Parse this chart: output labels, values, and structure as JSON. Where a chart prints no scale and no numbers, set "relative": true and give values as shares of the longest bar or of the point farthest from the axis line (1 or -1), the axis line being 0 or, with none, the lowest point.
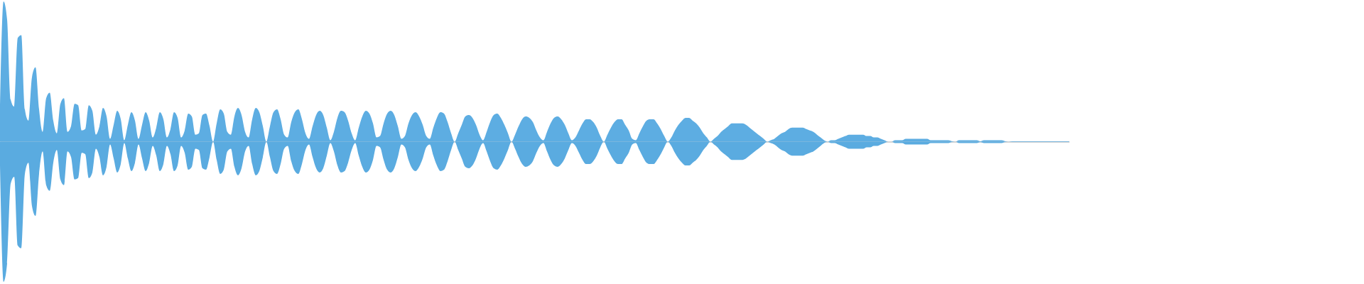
{
  "chart_data": {
    "type": "area",
    "relative": true,
    "categories": [
      null,
      null,
      null,
      null,
      null,
      null,
      null,
      null,
      null,
      null,
      null,
      null,
      null,
      null,
      null,
      null,
      null,
      null,
      null,
      null,
      null,
      null,
      null,
      null,
      null,
      null,
      null,
      null,
      null,
      null,
      null,
      null,
      null,
      null,
      null,
      null,
      null,
      null,
      null,
      null,
      null,
      null,
      null,
      null,
      null,
      null,
      null,
      null,
      null,
      null,
      null,
      null,
      null,
      null,
      null,
      null,
      null,
      null,
      null,
      null,
      null,
      null,
      null,
      null,
      null,
      null,
      null,
      null,
      null,
      null,
      null,
      null,
      null,
      null,
      null,
      null,
      null,
      null,
      null,
      null,
      null,
      null,
      null,
      null,
      null,
      null,
      null,
      null,
      null,
      null,
      null,
      null,
      null,
      null,
      null,
      null,
      null,
      null,
      null,
      null,
      null,
      null,
      null,
      null,
      null,
      null,
      null,
      null,
      null,
      null,
      null,
      null,
      null,
      null,
      null,
      null,
      null,
      null,
      null,
      null,
      null,
      null,
      null,
      null,
      null,
      null,
      null,
      null,
      null,
      null,
      null,
      null,
      null,
      null,
      null,
      null,
      null,
      null,
      null,
      null,
      null,
      null,
      null,
      null,
      null,
      null,
      null,
      null,
      null,
      null,
      null,
      null,
      null,
      null,
      null,
      null,
      null,
      null,
      null,
      null,
      null,
      null,
      null,
      null,
      null,
      null,
      null,
      null,
      null,
      null,
      null,
      null,
      null,
      null,
      null,
      null,
      null,
      null,
      null,
      null,
      null,
      null,
      null,
      null,
      null,
      null,
      null,
      null,
      null,
      null,
      null,
      null,
      null,
      null,
      null,
      null,
      null,
      null,
      null,
      null,
      null,
      null,
      null,
      null,
      null,
      null,
      null,
      null,
      null,
      null,
      null,
      null,
      null,
      null,
      null,
      null,
      null,
      null,
      null,
      null,
      null,
      null,
      null,
      null,
      null,
      null,
      null,
      null,
      null,
      null,
      null,
      null,
      null,
      null,
      null,
      null,
      null,
      null,
      null,
      null,
      null,
      null,
      null,
      null,
      null,
      null,
      null,
      null,
      null,
      null,
      null,
      null,
      null,
      null,
      null,
      null,
      null,
      null,
      null,
      null,
      null,
      null,
      null,
      null,
      null,
      null,
      null,
      null,
      null,
      null,
      null,
      null,
      null,
      null,
      null,
      null,
      null,
      null,
      null,
      null,
      null,
      null,
      null,
      null,
      null,
      null,
      null,
      null,
      null,
      null,
      null,
      null,
      null,
      null,
      null,
      null,
      null,
      null,
      null,
      null,
      null,
      null
    ],
    "series": [
      {
        "color": "#5dade2",
        "values": [
          0.17,
          1,
          0.87,
          0.3,
          0.25,
          0.74,
          0.76,
          0.23,
          0.15,
          0.46,
          0.53,
          0.23,
          0.07,
          0.31,
          0.35,
          0.15,
          0.06,
          0.27,
          0.31,
          0.07,
          0.11,
          0.27,
          0.26,
          0.08,
          0.09,
          0.26,
          0.22,
          0.05,
          0.11,
          0.24,
          0.18,
          0.02,
          0.12,
          0.22,
          0.16,
          0.01,
          0.12,
          0.21,
          0.15,
          0.02,
          0.12,
          0.21,
          0.15,
          0.03,
          0.1,
          0.21,
          0.16,
          0.03,
          0.09,
          0.21,
          0.17,
          0.03,
          0.08,
          0.2,
          0.18,
          0.05,
          0.06,
          0.19,
          0.2,
          0.11,
          0,
          0.13,
          0.23,
          0.2,
          0.07,
          0.05,
          0.18,
          0.24,
          0.19,
          0.07,
          0.03,
          0.16,
          0.24,
          0.21,
          0.11,
          0,
          0.11,
          0.21,
          0.23,
          0.16,
          0.05,
          0.03,
          0.14,
          0.21,
          0.23,
          0.16,
          0.06,
          0.02,
          0.11,
          0.19,
          0.22,
          0.19,
          0.1,
          0.01,
          0.07,
          0.17,
          0.22,
          0.21,
          0.15,
          0.06,
          0.01,
          0.1,
          0.18,
          0.22,
          0.2,
          0.13,
          0.03,
          0.04,
          0.13,
          0.2,
          0.22,
          0.19,
          0.11,
          0.02,
          0.04,
          0.13,
          0.19,
          0.21,
          0.18,
          0.12,
          0.04,
          0.02,
          0.1,
          0.17,
          0.21,
          0.2,
          0.14,
          0.06,
          0,
          0.06,
          0.12,
          0.18,
          0.19,
          0.17,
          0.12,
          0.05,
          0.01,
          0.07,
          0.14,
          0.19,
          0.2,
          0.17,
          0.12,
          0.06,
          0,
          0.05,
          0.11,
          0.16,
          0.18,
          0.17,
          0.14,
          0.08,
          0.03,
          0.01,
          0.07,
          0.13,
          0.17,
          0.18,
          0.16,
          0.12,
          0.06,
          0.01,
          0.03,
          0.08,
          0.13,
          0.16,
          0.16,
          0.14,
          0.1,
          0.04,
          0,
          0.05,
          0.1,
          0.14,
          0.16,
          0.16,
          0.12,
          0.08,
          0.02,
          0.01,
          0.06,
          0.11,
          0.15,
          0.16,
          0.16,
          0.13,
          0.09,
          0.04,
          0,
          0.03,
          0.08,
          0.12,
          0.15,
          0.17,
          0.17,
          0.15,
          0.13,
          0.1,
          0.06,
          0.03,
          0,
          0.02,
          0.04,
          0.07,
          0.09,
          0.11,
          0.13,
          0.13,
          0.13,
          0.13,
          0.12,
          0.1,
          0.08,
          0.06,
          0.04,
          0.02,
          0,
          0.01,
          0.02,
          0.04,
          0.06,
          0.07,
          0.09,
          0.1,
          0.1,
          0.1,
          0.1,
          0.09,
          0.08,
          0.07,
          0.05,
          0.03,
          0.01,
          0,
          0.01,
          0.01,
          0.02,
          0.03,
          0.04,
          0.05,
          0.05,
          0.05,
          0.05,
          0.05,
          0.04,
          0.04,
          0.03,
          0.03,
          0.02,
          0.01,
          0,
          0,
          0.01,
          0.01,
          0.01,
          0.02,
          0.02,
          0.02,
          0.02,
          0.02,
          0.02,
          0.02,
          0.01,
          0.01,
          0.01,
          0.01,
          0.01,
          0.01,
          0.003,
          0,
          0.01,
          0.01,
          0.01,
          0.01,
          0.01,
          0.01,
          0.003,
          0.01,
          0.01,
          0.01,
          0.01,
          0.01,
          0.01,
          0.003,
          0,
          0.003,
          0.003,
          0.003,
          0.003,
          0.003,
          0.003,
          0.003,
          0.003,
          0.003,
          0.003,
          0.003,
          0.003,
          0.003,
          0.003,
          0.003,
          0.003,
          0.003
        ]
      },
      {
        "color": "#5aabe0",
        "values": [
          -0.17,
          -1,
          -0.87,
          -0.3,
          -0.25,
          -0.74,
          -0.76,
          -0.23,
          -0.15,
          -0.46,
          -0.53,
          -0.23,
          -0.07,
          -0.31,
          -0.35,
          -0.15,
          -0.06,
          -0.27,
          -0.31,
          -0.07,
          -0.11,
          -0.27,
          -0.26,
          -0.08,
          -0.09,
          -0.26,
          -0.22,
          -0.05,
          -0.11,
          -0.24,
          -0.18,
          -0.02,
          -0.12,
          -0.22,
          -0.16,
          -0.01,
          -0.12,
          -0.21,
          -0.15,
          -0.02,
          -0.12,
          -0.21,
          -0.15,
          -0.03,
          -0.1,
          -0.21,
          -0.16,
          -0.03,
          -0.09,
          -0.21,
          -0.17,
          -0.03,
          -0.08,
          -0.2,
          -0.18,
          -0.05,
          -0.06,
          -0.19,
          -0.2,
          -0.11,
          0,
          -0.13,
          -0.23,
          -0.2,
          -0.07,
          -0.05,
          -0.18,
          -0.24,
          -0.19,
          -0.07,
          -0.03,
          -0.16,
          -0.24,
          -0.21,
          -0.11,
          0,
          -0.11,
          -0.21,
          -0.23,
          -0.16,
          -0.05,
          -0.03,
          -0.14,
          -0.21,
          -0.23,
          -0.16,
          -0.06,
          -0.02,
          -0.11,
          -0.19,
          -0.22,
          -0.19,
          -0.1,
          -0.01,
          -0.07,
          -0.17,
          -0.22,
          -0.21,
          -0.15,
          -0.06,
          -0.01,
          -0.1,
          -0.18,
          -0.22,
          -0.2,
          -0.13,
          -0.03,
          -0.04,
          -0.13,
          -0.2,
          -0.22,
          -0.19,
          -0.11,
          -0.02,
          -0.04,
          -0.13,
          -0.19,
          -0.21,
          -0.18,
          -0.12,
          -0.04,
          -0.02,
          -0.1,
          -0.17,
          -0.21,
          -0.2,
          -0.14,
          -0.06,
          0,
          -0.06,
          -0.12,
          -0.18,
          -0.19,
          -0.17,
          -0.12,
          -0.05,
          -0.01,
          -0.07,
          -0.14,
          -0.19,
          -0.2,
          -0.17,
          -0.12,
          -0.06,
          0,
          -0.05,
          -0.11,
          -0.16,
          -0.18,
          -0.17,
          -0.14,
          -0.08,
          -0.03,
          -0.01,
          -0.07,
          -0.13,
          -0.17,
          -0.18,
          -0.16,
          -0.12,
          -0.06,
          -0.01,
          -0.03,
          -0.08,
          -0.13,
          -0.16,
          -0.16,
          -0.14,
          -0.1,
          -0.04,
          0,
          -0.05,
          -0.1,
          -0.14,
          -0.16,
          -0.16,
          -0.12,
          -0.08,
          -0.02,
          -0.01,
          -0.06,
          -0.11,
          -0.15,
          -0.16,
          -0.16,
          -0.13,
          -0.09,
          -0.04,
          0,
          -0.03,
          -0.08,
          -0.12,
          -0.15,
          -0.17,
          -0.17,
          -0.15,
          -0.13,
          -0.1,
          -0.06,
          -0.03,
          0,
          -0.02,
          -0.04,
          -0.07,
          -0.09,
          -0.11,
          -0.13,
          -0.13,
          -0.13,
          -0.13,
          -0.12,
          -0.1,
          -0.08,
          -0.06,
          -0.04,
          -0.02,
          0,
          -0.01,
          -0.02,
          -0.04,
          -0.06,
          -0.07,
          -0.09,
          -0.1,
          -0.1,
          -0.1,
          -0.1,
          -0.09,
          -0.08,
          -0.07,
          -0.05,
          -0.03,
          -0.01,
          0,
          -0.01,
          -0.01,
          -0.02,
          -0.03,
          -0.04,
          -0.05,
          -0.05,
          -0.05,
          -0.05,
          -0.05,
          -0.04,
          -0.04,
          -0.03,
          -0.03,
          -0.02,
          -0.01,
          0,
          0,
          -0.01,
          -0.01,
          -0.01,
          -0.02,
          -0.02,
          -0.02,
          -0.02,
          -0.02,
          -0.02,
          -0.02,
          -0.01,
          -0.01,
          -0.01,
          -0.01,
          -0.01,
          -0.01,
          -0.003,
          0,
          -0.01,
          -0.01,
          -0.01,
          -0.01,
          -0.01,
          -0.01,
          -0.003,
          -0.01,
          -0.01,
          -0.01,
          -0.01,
          -0.01,
          -0.01,
          -0.003,
          0,
          -0.003,
          -0.003,
          -0.003,
          -0.003,
          -0.003,
          -0.003,
          -0.003,
          -0.003,
          -0.003,
          -0.003,
          -0.003,
          -0.003,
          -0.003,
          -0.003,
          -0.003,
          -0.003,
          -0.003
        ]
      }
    ]
  }
}
